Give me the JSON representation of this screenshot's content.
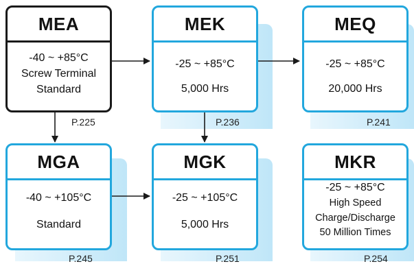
{
  "diagram": {
    "nodes": [
      {
        "id": "MEA",
        "title": "MEA",
        "lines": [
          "-40 ~ +85°C",
          "Screw Terminal",
          "Standard"
        ],
        "page": "P.225"
      },
      {
        "id": "MEK",
        "title": "MEK",
        "lines": [
          "-25 ~ +85°C",
          "5,000 Hrs"
        ],
        "page": "P.236"
      },
      {
        "id": "MEQ",
        "title": "MEQ",
        "lines": [
          "-25 ~ +85°C",
          "20,000 Hrs"
        ],
        "page": "P.241"
      },
      {
        "id": "MGA",
        "title": "MGA",
        "lines": [
          "-40 ~ +105°C",
          "Standard"
        ],
        "page": "P.245"
      },
      {
        "id": "MGK",
        "title": "MGK",
        "lines": [
          "-25 ~ +105°C",
          "5,000 Hrs"
        ],
        "page": "P.251"
      },
      {
        "id": "MKR",
        "title": "MKR",
        "lines": [
          "-25 ~ +85°C",
          "High Speed",
          "Charge/Discharge",
          "50 Million Times"
        ],
        "page": "P.254"
      }
    ],
    "edges": [
      {
        "from": "MEA",
        "to": "MEK"
      },
      {
        "from": "MEK",
        "to": "MEQ"
      },
      {
        "from": "MEA",
        "to": "MGA"
      },
      {
        "from": "MEK",
        "to": "MGK"
      },
      {
        "from": "MGA",
        "to": "MGK"
      }
    ],
    "colors": {
      "border_blue": "#22a7dd",
      "border_dark": "#1a1a1a",
      "shadow_light": "#e8f6fd",
      "shadow_mid": "#bfe6f8",
      "arrow": "#1a1a1a"
    }
  }
}
